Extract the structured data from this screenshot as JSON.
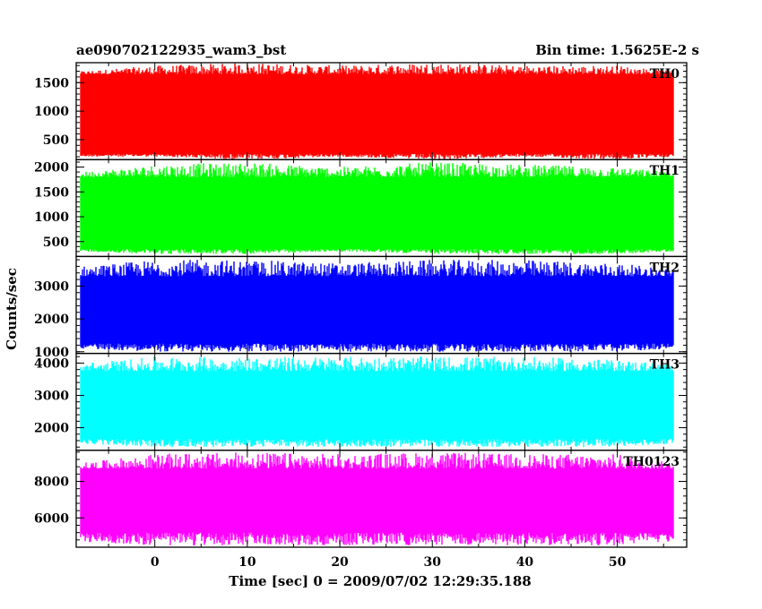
{
  "header": {
    "title": "ae090702122935_wam3_bst",
    "bin_time": "Bin time: 1.5625E-2 s"
  },
  "chart_data": {
    "type": "line",
    "title": "ae090702122935_wam3_bst",
    "xlabel": "Time [sec] 0 = 2009/07/02 12:29:35.188",
    "ylabel": "Counts/sec",
    "xlim": [
      -8.5,
      57.5
    ],
    "x_data_range": [
      -8,
      56
    ],
    "x_ticks": [
      0,
      10,
      20,
      30,
      40,
      50
    ],
    "x_tick_labels": [
      "0",
      "10",
      "20",
      "30",
      "40",
      "50"
    ],
    "grid": false,
    "legend": "none",
    "panels": [
      {
        "name": "TH0",
        "color": "#ff0000",
        "ylim": [
          150,
          1850
        ],
        "y_ticks": [
          500,
          1000,
          1500
        ],
        "y_tick_labels": [
          "500",
          "1000",
          "1500"
        ],
        "typical_low": 250,
        "typical_high": 1650,
        "envelope": [
          {
            "x": -8,
            "lo": 200,
            "hi": 1700
          },
          {
            "x": 0,
            "lo": 200,
            "hi": 1800
          },
          {
            "x": 10,
            "lo": 150,
            "hi": 1850
          },
          {
            "x": 20,
            "lo": 200,
            "hi": 1800
          },
          {
            "x": 30,
            "lo": 150,
            "hi": 1850
          },
          {
            "x": 40,
            "lo": 200,
            "hi": 1800
          },
          {
            "x": 50,
            "lo": 150,
            "hi": 1800
          },
          {
            "x": 56,
            "lo": 200,
            "hi": 1700
          }
        ]
      },
      {
        "name": "TH1",
        "color": "#00ff00",
        "ylim": [
          200,
          2150
        ],
        "y_ticks": [
          500,
          1000,
          1500,
          2000
        ],
        "y_tick_labels": [
          "500",
          "1000",
          "1500",
          "2000"
        ],
        "typical_low": 350,
        "typical_high": 1800,
        "envelope": [
          {
            "x": -8,
            "lo": 300,
            "hi": 1900
          },
          {
            "x": 0,
            "lo": 250,
            "hi": 2050
          },
          {
            "x": 10,
            "lo": 250,
            "hi": 2100
          },
          {
            "x": 20,
            "lo": 300,
            "hi": 2000
          },
          {
            "x": 30,
            "lo": 250,
            "hi": 2100
          },
          {
            "x": 40,
            "lo": 250,
            "hi": 2050
          },
          {
            "x": 50,
            "lo": 250,
            "hi": 2000
          },
          {
            "x": 56,
            "lo": 300,
            "hi": 1900
          }
        ]
      },
      {
        "name": "TH2",
        "color": "#0000ff",
        "ylim": [
          950,
          3900
        ],
        "y_ticks": [
          1000,
          2000,
          3000
        ],
        "y_tick_labels": [
          "1000",
          "2000",
          "3000"
        ],
        "typical_low": 1250,
        "typical_high": 3300,
        "envelope": [
          {
            "x": -8,
            "lo": 1100,
            "hi": 3600
          },
          {
            "x": 0,
            "lo": 1000,
            "hi": 3800
          },
          {
            "x": 10,
            "lo": 1000,
            "hi": 3800
          },
          {
            "x": 20,
            "lo": 1000,
            "hi": 3700
          },
          {
            "x": 30,
            "lo": 1000,
            "hi": 3800
          },
          {
            "x": 40,
            "lo": 1000,
            "hi": 3800
          },
          {
            "x": 50,
            "lo": 1000,
            "hi": 3700
          },
          {
            "x": 56,
            "lo": 1100,
            "hi": 3500
          }
        ]
      },
      {
        "name": "TH3",
        "color": "#00ffff",
        "ylim": [
          1300,
          4300
        ],
        "y_ticks": [
          2000,
          3000,
          4000
        ],
        "y_tick_labels": [
          "2000",
          "3000",
          "4000"
        ],
        "typical_low": 1650,
        "typical_high": 3750,
        "envelope": [
          {
            "x": -8,
            "lo": 1500,
            "hi": 4000
          },
          {
            "x": 0,
            "lo": 1400,
            "hi": 4200
          },
          {
            "x": 10,
            "lo": 1400,
            "hi": 4200
          },
          {
            "x": 20,
            "lo": 1400,
            "hi": 4200
          },
          {
            "x": 30,
            "lo": 1400,
            "hi": 4200
          },
          {
            "x": 40,
            "lo": 1400,
            "hi": 4200
          },
          {
            "x": 50,
            "lo": 1400,
            "hi": 4100
          },
          {
            "x": 56,
            "lo": 1500,
            "hi": 4000
          }
        ]
      },
      {
        "name": "TH0123",
        "color": "#ff00ff",
        "ylim": [
          4400,
          9700
        ],
        "y_ticks": [
          6000,
          8000
        ],
        "y_tick_labels": [
          "6000",
          "8000"
        ],
        "typical_low": 5200,
        "typical_high": 8700,
        "envelope": [
          {
            "x": -8,
            "lo": 4700,
            "hi": 9000
          },
          {
            "x": 0,
            "lo": 4500,
            "hi": 9500
          },
          {
            "x": 10,
            "lo": 4500,
            "hi": 9600
          },
          {
            "x": 20,
            "lo": 4500,
            "hi": 9500
          },
          {
            "x": 30,
            "lo": 4500,
            "hi": 9600
          },
          {
            "x": 40,
            "lo": 4500,
            "hi": 9500
          },
          {
            "x": 50,
            "lo": 4500,
            "hi": 9500
          },
          {
            "x": 56,
            "lo": 4700,
            "hi": 9000
          }
        ]
      }
    ]
  }
}
